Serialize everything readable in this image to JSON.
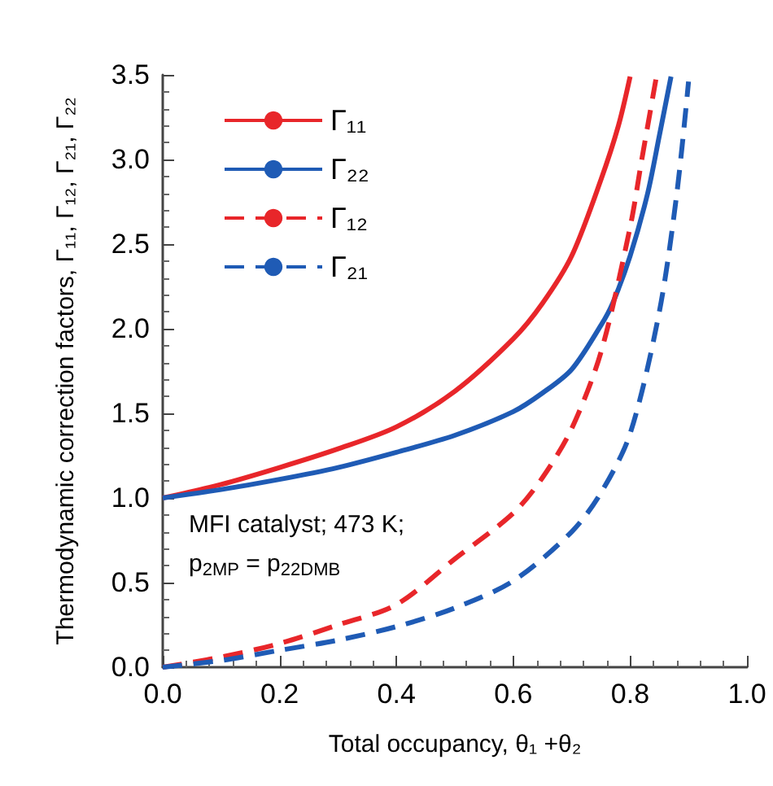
{
  "chart_data": {
    "type": "line",
    "xlabel": "Total occupancy, θ₁ +θ₂",
    "ylabel": "Thermodynamic correction factors, Γ₁₁, Γ₁₂, Γ₂₁, Γ₂₂",
    "xlim": [
      0,
      1
    ],
    "xticks": [
      {
        "value": 0,
        "label": "0.0"
      },
      0.2,
      0.4,
      0.6,
      0.8,
      {
        "value": 1,
        "label": "1.0"
      }
    ],
    "ylim": [
      0,
      3.5
    ],
    "yticks": [
      {
        "value": 0,
        "label": "0.0"
      },
      0.5,
      {
        "value": 1,
        "label": "1.0"
      },
      1.5,
      {
        "value": 2,
        "label": "2.0"
      },
      2.5,
      {
        "value": 3,
        "label": "3.0"
      },
      3.5
    ],
    "grid": false,
    "legend": "top left",
    "marker": "none",
    "annotations": [
      "MFI catalyst; 473 K;",
      "p$_{2MP}$ = p$_{22DMB}$"
    ],
    "series": [
      {
        "name": "Γ₁₁",
        "color": "#e8262a",
        "line_style": "solid",
        "x": [
          0,
          0.1,
          0.2,
          0.3,
          0.4,
          0.5,
          0.6,
          0.65,
          0.7,
          0.75,
          0.78,
          0.8
        ],
        "values": [
          1,
          1.08,
          1.18,
          1.29,
          1.42,
          1.63,
          1.94,
          2.15,
          2.43,
          2.88,
          3.2,
          3.49
        ]
      },
      {
        "name": "Γ₂₂",
        "color": "#1f5bb5",
        "line_style": "solid",
        "x": [
          0,
          0.1,
          0.2,
          0.3,
          0.4,
          0.5,
          0.6,
          0.65,
          0.7,
          0.75,
          0.77,
          0.8,
          0.83,
          0.85,
          0.87
        ],
        "values": [
          1,
          1.05,
          1.11,
          1.18,
          1.27,
          1.37,
          1.51,
          1.62,
          1.76,
          2.02,
          2.15,
          2.43,
          2.8,
          3.14,
          3.49
        ]
      },
      {
        "name": "Γ₁₂",
        "color": "#e8262a",
        "line_style": "dashed",
        "x": [
          0,
          0.1,
          0.2,
          0.3,
          0.4,
          0.5,
          0.6,
          0.65,
          0.7,
          0.75,
          0.8,
          0.82,
          0.845
        ],
        "values": [
          0,
          0.06,
          0.14,
          0.25,
          0.37,
          0.64,
          0.91,
          1.12,
          1.41,
          1.86,
          2.6,
          3.0,
          3.49
        ]
      },
      {
        "name": "Γ₂₁",
        "color": "#1f5bb5",
        "line_style": "dashed",
        "x": [
          0,
          0.1,
          0.2,
          0.3,
          0.4,
          0.5,
          0.6,
          0.7,
          0.75,
          0.8,
          0.85,
          0.88,
          0.9
        ],
        "values": [
          0,
          0.04,
          0.1,
          0.16,
          0.24,
          0.35,
          0.51,
          0.8,
          1.03,
          1.38,
          2.1,
          2.8,
          3.46
        ]
      }
    ]
  }
}
